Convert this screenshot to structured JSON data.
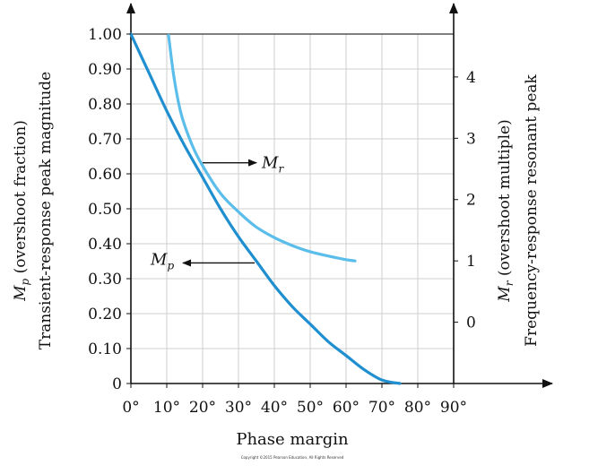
{
  "chart_data": {
    "type": "line",
    "xlabel": "Phase margin",
    "x_ticks": [
      "0°",
      "10°",
      "20°",
      "30°",
      "40°",
      "50°",
      "60°",
      "70°",
      "80°",
      "90°"
    ],
    "xlim": [
      0,
      90
    ],
    "y_left": {
      "label_line1": "Mp (overshoot fraction)",
      "label_line2": "Transient-response peak magnitude",
      "ticks": [
        "0",
        "0.10",
        "0.20",
        "0.30",
        "0.40",
        "0.50",
        "0.60",
        "0.70",
        "0.80",
        "0.90",
        "1.00"
      ],
      "ylim": [
        0,
        1.0
      ]
    },
    "y_right": {
      "label_line1": "Mr (overshoot multiple)",
      "label_line2": "Frequency-response resonant peak",
      "ticks": [
        "0",
        "1",
        "2",
        "3",
        "4"
      ],
      "ylim": [
        -1,
        4.7
      ]
    },
    "grid": true,
    "series": [
      {
        "name": "Mp",
        "axis": "left",
        "color": "#1f8fd0",
        "x": [
          0,
          5,
          10,
          15,
          20,
          25,
          30,
          35,
          40,
          45,
          50,
          55,
          60,
          65,
          70,
          75
        ],
        "y": [
          1.0,
          0.89,
          0.78,
          0.68,
          0.59,
          0.5,
          0.42,
          0.35,
          0.28,
          0.22,
          0.17,
          0.12,
          0.08,
          0.04,
          0.01,
          0.0
        ]
      },
      {
        "name": "Mr",
        "axis": "right",
        "color": "#5bbdea",
        "x": [
          10.5,
          12,
          14,
          17,
          20,
          25,
          30,
          35,
          40,
          45,
          50,
          55,
          60,
          62.5
        ],
        "y": [
          4.68,
          4.0,
          3.4,
          2.9,
          2.55,
          2.1,
          1.8,
          1.55,
          1.38,
          1.25,
          1.15,
          1.08,
          1.02,
          1.0
        ]
      }
    ],
    "annotations": [
      {
        "text": "M",
        "sub": "r",
        "series": "Mr"
      },
      {
        "text": "M",
        "sub": "p",
        "series": "Mp"
      }
    ],
    "footer": "Copyright ©2015 Pearson Education, All Rights Reserved"
  }
}
